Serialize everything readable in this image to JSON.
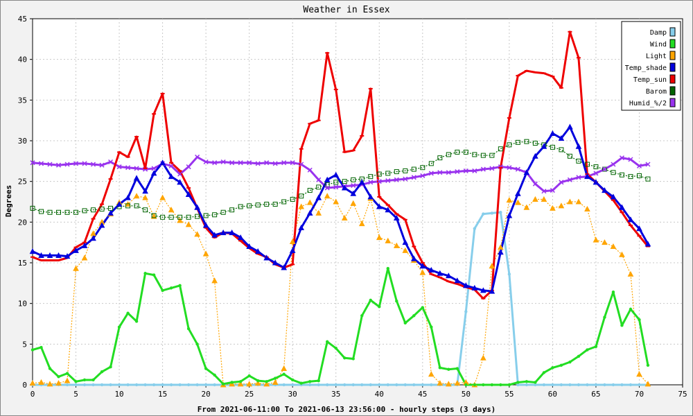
{
  "chart_data": {
    "type": "line",
    "title": "Weather in Essex",
    "xlabel": "From 2021-06-11:00 To 2021-06-13 23:56:00 - hourly steps (3 days)",
    "ylabel": "Degrees",
    "xlim": [
      0,
      75
    ],
    "ylim": [
      0,
      45
    ],
    "xticks": [
      0,
      5,
      10,
      15,
      20,
      25,
      30,
      35,
      40,
      45,
      50,
      55,
      60,
      65,
      70,
      75
    ],
    "yticks": [
      0,
      5,
      10,
      15,
      20,
      25,
      30,
      35,
      40,
      45
    ],
    "grid": true,
    "legend": "top-right",
    "series": [
      {
        "name": "Damp",
        "color": "#87ceeb",
        "dashed": false,
        "marker": "dot",
        "values": [
          0,
          0,
          0,
          0,
          0,
          0,
          0,
          0,
          0,
          0,
          0,
          0,
          0,
          0,
          0,
          0,
          0,
          0,
          0,
          0,
          0,
          0,
          0,
          0,
          0,
          0,
          0,
          0,
          0,
          0,
          0,
          0,
          0,
          0,
          0,
          0,
          0,
          0,
          0,
          0,
          0,
          0,
          0,
          0,
          0,
          0,
          0,
          0,
          0,
          0,
          9,
          19.2,
          21,
          21.1,
          21.2,
          13.6,
          0,
          0,
          0,
          0,
          0,
          0,
          0,
          0,
          0,
          0,
          0,
          0,
          0,
          0,
          0,
          0
        ]
      },
      {
        "name": "Wind",
        "color": "#22dd22",
        "dashed": false,
        "marker": "dot",
        "values": [
          4.3,
          4.6,
          2,
          1,
          1.4,
          0.4,
          0.6,
          0.6,
          1.6,
          2.2,
          7.1,
          8.8,
          7.8,
          13.7,
          13.5,
          11.6,
          11.9,
          12.2,
          6.9,
          5,
          2,
          1.2,
          0.1,
          0.3,
          0.4,
          1.1,
          0.5,
          0.4,
          0.8,
          1.3,
          0.6,
          0.2,
          0.4,
          0.5,
          5.3,
          4.5,
          3.3,
          3.2,
          8.5,
          10.4,
          9.6,
          14.3,
          10.3,
          7.6,
          8.5,
          9.5,
          7.1,
          2.1,
          1.9,
          2,
          0,
          0,
          0,
          0,
          0,
          0,
          0.3,
          0.4,
          0.3,
          1.5,
          2.1,
          2.4,
          2.8,
          3.5,
          4.3,
          4.7,
          8.3,
          11.4,
          7.3,
          9.3,
          8,
          2.4
        ]
      },
      {
        "name": "Light",
        "color": "#ffa500",
        "dashed": true,
        "marker": "triangle",
        "values": [
          0.2,
          0.3,
          0.1,
          0.2,
          0.5,
          14.3,
          15.6,
          18.6,
          20,
          21,
          22.4,
          22.2,
          23.2,
          23,
          20.7,
          23,
          21.5,
          20.2,
          19.7,
          18.5,
          16.1,
          12.8,
          0,
          0.1,
          0.1,
          0.1,
          0.2,
          0.1,
          0.3,
          2,
          17.6,
          21.9,
          22.4,
          21.1,
          23.2,
          22.5,
          20.5,
          22.3,
          19.8,
          22.9,
          18.1,
          17.7,
          17.1,
          16.5,
          15.3,
          13.8,
          1.3,
          0.2,
          0.1,
          0.2,
          0.3,
          0,
          3.3,
          14.6,
          16.9,
          22.7,
          22.4,
          21.8,
          22.8,
          22.8,
          21.7,
          22,
          22.5,
          22.5,
          21.6,
          17.8,
          17.5,
          17,
          16,
          13.6,
          1.3,
          0.1
        ]
      },
      {
        "name": "Temp_shade",
        "color": "#0000dd",
        "dashed": false,
        "marker": "triangle",
        "values": [
          16.4,
          15.9,
          15.9,
          15.9,
          15.8,
          16.5,
          17.1,
          18,
          19.6,
          21.1,
          22.2,
          23,
          25.4,
          23.8,
          26,
          27.3,
          25.6,
          24.9,
          23.4,
          21.8,
          19.6,
          18.4,
          18.7,
          18.7,
          18.1,
          17,
          16.4,
          15.6,
          15,
          14.4,
          16.5,
          19.3,
          21.1,
          23,
          25.2,
          25.8,
          24.2,
          23.5,
          24.9,
          23.1,
          21.9,
          21.5,
          20.5,
          17.5,
          15.5,
          14.6,
          14.1,
          13.7,
          13.4,
          12.8,
          12.2,
          11.9,
          11.6,
          11.5,
          16.3,
          20.8,
          23.5,
          26.1,
          28.1,
          29.3,
          30.9,
          30.3,
          31.7,
          29.3,
          25.6,
          24.9,
          23.9,
          23.1,
          21.8,
          20.3,
          19.2,
          17.3
        ]
      },
      {
        "name": "Temp_sun",
        "color": "#ee0000",
        "dashed": false,
        "marker": "line",
        "values": [
          15.7,
          15.3,
          15.3,
          15.3,
          15.6,
          16.9,
          17.5,
          20.4,
          22.2,
          25.3,
          28.6,
          28,
          30.5,
          26.6,
          33.3,
          35.8,
          27.3,
          26.3,
          24.2,
          21.7,
          19.3,
          18.1,
          18.7,
          18.6,
          17.7,
          16.8,
          16.1,
          15.7,
          14.8,
          14.4,
          14.8,
          29,
          32.1,
          32.5,
          40.8,
          36.3,
          28.6,
          28.8,
          30.6,
          36.4,
          23.1,
          22.1,
          21,
          20.3,
          17,
          15,
          13.6,
          13.2,
          12.7,
          12.4,
          12,
          11.7,
          10.6,
          11.6,
          26.7,
          32.8,
          38,
          38.6,
          38.4,
          38.3,
          37.9,
          36.5,
          43.4,
          40.2,
          25.9,
          24.9,
          23.8,
          22.7,
          21.2,
          19.6,
          18.3,
          17
        ]
      },
      {
        "name": "Barom",
        "color": "#006400",
        "dashed": true,
        "marker": "square",
        "values": [
          21.7,
          21.3,
          21.2,
          21.2,
          21.2,
          21.2,
          21.4,
          21.5,
          21.6,
          21.7,
          21.9,
          22,
          22,
          21.5,
          20.8,
          20.6,
          20.6,
          20.6,
          20.6,
          20.7,
          20.8,
          20.9,
          21.2,
          21.5,
          21.9,
          22,
          22.1,
          22.2,
          22.2,
          22.5,
          22.8,
          23.2,
          23.9,
          24.3,
          24.6,
          24.9,
          25,
          25.2,
          25.3,
          25.6,
          25.9,
          26,
          26.2,
          26.3,
          26.5,
          26.7,
          27.2,
          27.9,
          28.3,
          28.6,
          28.6,
          28.3,
          28.2,
          28.2,
          29,
          29.5,
          29.8,
          29.9,
          29.7,
          29.5,
          29.2,
          28.9,
          28.1,
          27.5,
          27.1,
          26.8,
          26.5,
          26.1,
          25.8,
          25.6,
          25.7,
          25.3
        ]
      },
      {
        "name": "Humid_%/2",
        "color": "#9933ee",
        "dashed": false,
        "marker": "cross",
        "values": [
          27.3,
          27.2,
          27.1,
          27,
          27.1,
          27.2,
          27.2,
          27.1,
          27,
          27.4,
          26.8,
          26.7,
          26.6,
          26.5,
          26.6,
          27.2,
          26.9,
          25.9,
          26.8,
          28,
          27.4,
          27.3,
          27.4,
          27.3,
          27.3,
          27.3,
          27.2,
          27.3,
          27.2,
          27.3,
          27.3,
          27.1,
          26.4,
          25.2,
          24.2,
          24.3,
          24.4,
          24.5,
          24.6,
          24.9,
          25,
          25.1,
          25.2,
          25.3,
          25.5,
          25.7,
          26,
          26.1,
          26.1,
          26.2,
          26.3,
          26.3,
          26.5,
          26.6,
          26.8,
          26.7,
          26.5,
          26.1,
          24.7,
          23.8,
          23.9,
          24.9,
          25.2,
          25.5,
          25.6,
          26,
          26.5,
          27.1,
          27.9,
          27.7,
          26.9,
          27.1
        ]
      }
    ]
  }
}
